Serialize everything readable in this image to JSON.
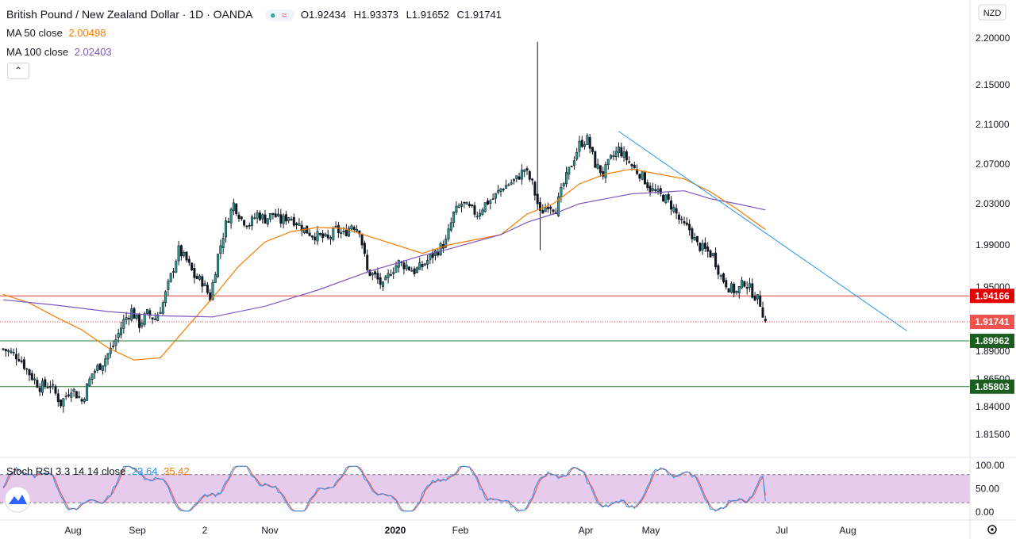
{
  "header": {
    "symbol": "British Pound / New Zealand Dollar · 1D · OANDA",
    "open_label": "O",
    "open": "1.92434",
    "high_label": "H",
    "high": "1.93373",
    "low_label": "L",
    "low": "1.91652",
    "close_label": "C",
    "close": "1.91741",
    "ma50_label": "MA 50 close",
    "ma50_value": "2.00498",
    "ma100_label": "MA 100 close",
    "ma100_value": "2.02403",
    "collapse_icon": "chevron-up-icon",
    "dot_icon": "circle-icon",
    "wave_icon": "wave-icon"
  },
  "currency_label": "NZD",
  "colors": {
    "up": "#26a69a",
    "down": "#ef5350",
    "candle_body_up": "#26a69a",
    "ma50": "#f57c00",
    "ma100": "#7e57c2",
    "trendline": "#2196f3",
    "resistance": "#e53935",
    "support": "#2e7d32",
    "stoch_k": "#2196f3",
    "stoch_d": "#f44336",
    "stoch_band": "#e1bee7"
  },
  "chart_data": {
    "type": "candlestick",
    "title": "British Pound / New Zealand Dollar · 1D · OANDA",
    "y_axis": {
      "ticks": [
        "2.20000",
        "2.15000",
        "2.11000",
        "2.07000",
        "2.03000",
        "1.99000",
        "1.95000",
        "1.89000",
        "1.86500",
        "1.84000",
        "1.81500"
      ],
      "tick_values": [
        2.2,
        2.15,
        2.11,
        2.07,
        2.03,
        1.99,
        1.95,
        1.89,
        1.865,
        1.84,
        1.815
      ],
      "range": [
        1.805,
        2.225
      ]
    },
    "x_axis": {
      "ticks": [
        "Aug",
        "Sep",
        "2",
        "Nov",
        "2020",
        "Feb",
        "Apr",
        "May",
        "Jul",
        "Aug"
      ],
      "bold_tick": "2020"
    },
    "price_labels": [
      {
        "value": "1.94166",
        "role": "resistance"
      },
      {
        "value": "1.91741",
        "role": "last"
      },
      {
        "value": "1.89962",
        "role": "support"
      },
      {
        "value": "1.85803",
        "role": "support"
      }
    ],
    "anchors": [
      [
        0,
        1.892
      ],
      [
        6,
        1.885
      ],
      [
        10,
        1.87
      ],
      [
        14,
        1.858
      ],
      [
        18,
        1.86
      ],
      [
        22,
        1.843
      ],
      [
        26,
        1.857
      ],
      [
        30,
        1.845
      ],
      [
        34,
        1.87
      ],
      [
        38,
        1.88
      ],
      [
        42,
        1.895
      ],
      [
        46,
        1.918
      ],
      [
        49,
        1.928
      ],
      [
        52,
        1.915
      ],
      [
        55,
        1.925
      ],
      [
        58,
        1.92
      ],
      [
        61,
        1.935
      ],
      [
        64,
        1.96
      ],
      [
        67,
        1.985
      ],
      [
        70,
        1.975
      ],
      [
        73,
        1.96
      ],
      [
        76,
        1.955
      ],
      [
        79,
        1.94
      ],
      [
        82,
        1.98
      ],
      [
        85,
        2.01
      ],
      [
        88,
        2.03
      ],
      [
        91,
        2.015
      ],
      [
        94,
        2.01
      ],
      [
        97,
        2.02
      ],
      [
        100,
        2.015
      ],
      [
        103,
        2.02
      ],
      [
        106,
        2.013
      ],
      [
        109,
        2.018
      ],
      [
        112,
        2.012
      ],
      [
        115,
        2.005
      ],
      [
        118,
        2.0
      ],
      [
        121,
        1.998
      ],
      [
        124,
        1.995
      ],
      [
        127,
        2.005
      ],
      [
        130,
        2.0
      ],
      [
        133,
        2.01
      ],
      [
        136,
        2.005
      ],
      [
        139,
        1.965
      ],
      [
        142,
        1.96
      ],
      [
        145,
        1.95
      ],
      [
        148,
        1.965
      ],
      [
        151,
        1.973
      ],
      [
        154,
        1.97
      ],
      [
        157,
        1.965
      ],
      [
        160,
        1.97
      ],
      [
        163,
        1.978
      ],
      [
        166,
        1.985
      ],
      [
        169,
        1.993
      ],
      [
        172,
        2.02
      ],
      [
        175,
        2.03
      ],
      [
        178,
        2.025
      ],
      [
        181,
        2.02
      ],
      [
        184,
        2.03
      ],
      [
        187,
        2.035
      ],
      [
        190,
        2.045
      ],
      [
        193,
        2.05
      ],
      [
        196,
        2.055
      ],
      [
        199,
        2.065
      ],
      [
        202,
        2.05
      ],
      [
        205,
        2.02
      ],
      [
        208,
        2.03
      ],
      [
        211,
        2.025
      ],
      [
        214,
        2.05
      ],
      [
        217,
        2.07
      ],
      [
        220,
        2.09
      ],
      [
        223,
        2.095
      ],
      [
        226,
        2.07
      ],
      [
        229,
        2.06
      ],
      [
        232,
        2.075
      ],
      [
        235,
        2.085
      ],
      [
        238,
        2.075
      ],
      [
        241,
        2.065
      ],
      [
        244,
        2.058
      ],
      [
        247,
        2.045
      ],
      [
        250,
        2.04
      ],
      [
        253,
        2.035
      ],
      [
        256,
        2.025
      ],
      [
        259,
        2.01
      ],
      [
        262,
        2.005
      ],
      [
        265,
        1.99
      ],
      [
        268,
        1.985
      ],
      [
        271,
        1.98
      ],
      [
        274,
        1.96
      ],
      [
        277,
        1.95
      ],
      [
        280,
        1.945
      ],
      [
        283,
        1.955
      ],
      [
        286,
        1.945
      ],
      [
        289,
        1.935
      ],
      [
        291,
        1.9174
      ]
    ],
    "candles_count": 292,
    "total_bars": 380,
    "ma50": [
      [
        0,
        1.943
      ],
      [
        10,
        1.935
      ],
      [
        20,
        1.922
      ],
      [
        30,
        1.91
      ],
      [
        40,
        1.893
      ],
      [
        50,
        1.882
      ],
      [
        60,
        1.884
      ],
      [
        70,
        1.912
      ],
      [
        80,
        1.94
      ],
      [
        90,
        1.97
      ],
      [
        100,
        1.993
      ],
      [
        110,
        2.003
      ],
      [
        120,
        2.007
      ],
      [
        130,
        2.006
      ],
      [
        140,
        1.998
      ],
      [
        150,
        1.99
      ],
      [
        160,
        1.982
      ],
      [
        170,
        1.99
      ],
      [
        180,
        1.995
      ],
      [
        190,
        2.0
      ],
      [
        200,
        2.02
      ],
      [
        210,
        2.03
      ],
      [
        220,
        2.05
      ],
      [
        230,
        2.06
      ],
      [
        240,
        2.065
      ],
      [
        250,
        2.06
      ],
      [
        260,
        2.055
      ],
      [
        270,
        2.042
      ],
      [
        280,
        2.025
      ],
      [
        291,
        2.005
      ]
    ],
    "ma100": [
      [
        0,
        1.938
      ],
      [
        20,
        1.933
      ],
      [
        40,
        1.927
      ],
      [
        60,
        1.923
      ],
      [
        80,
        1.922
      ],
      [
        100,
        1.932
      ],
      [
        120,
        1.947
      ],
      [
        140,
        1.965
      ],
      [
        160,
        1.98
      ],
      [
        170,
        1.986
      ],
      [
        180,
        1.993
      ],
      [
        190,
        2.0
      ],
      [
        200,
        2.012
      ],
      [
        210,
        2.02
      ],
      [
        220,
        2.03
      ],
      [
        240,
        2.04
      ],
      [
        260,
        2.043
      ],
      [
        270,
        2.035
      ],
      [
        280,
        2.03
      ],
      [
        291,
        2.024
      ]
    ],
    "trendline": [
      [
        235,
        2.103
      ],
      [
        345,
        1.909
      ]
    ],
    "hlines": [
      {
        "value": 1.94166,
        "color": "resistance"
      },
      {
        "value": 1.89962,
        "color": "support"
      },
      {
        "value": 1.85803,
        "color": "support"
      },
      {
        "value": 1.91741,
        "color": "last",
        "dotted": true
      }
    ],
    "stoch_rsi": {
      "label": "Stoch RSI 3 3 14 14 close",
      "k_value": "23.64",
      "d_value": "35.42",
      "ticks": [
        "100.00",
        "50.00",
        "0.00"
      ],
      "tick_values": [
        100,
        50,
        0
      ],
      "band": [
        20,
        80
      ]
    }
  },
  "bottom": {
    "settings_icon": "gear-icon",
    "logo": "tradingview-logo-icon"
  }
}
